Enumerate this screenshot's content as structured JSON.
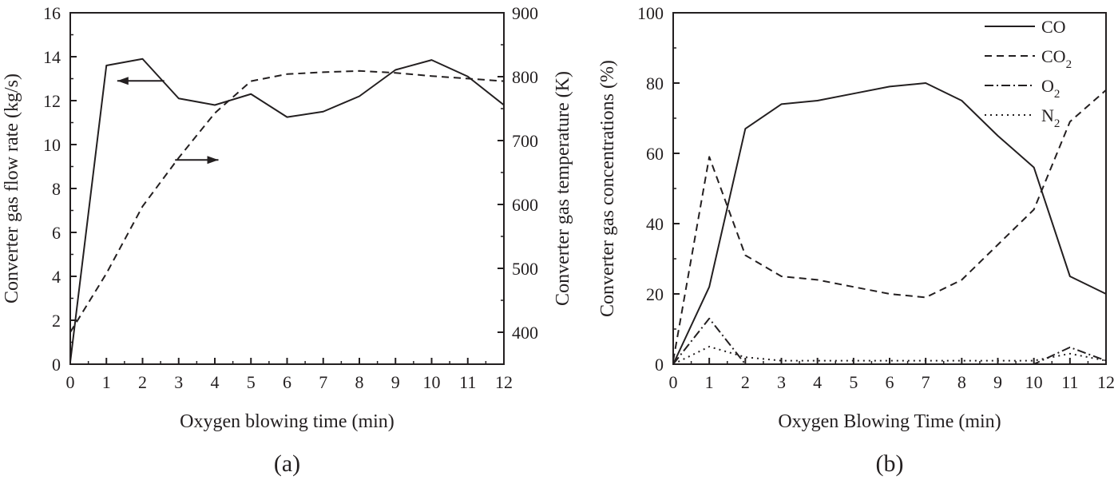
{
  "chart_data": [
    {
      "type": "line",
      "panel_label": "(a)",
      "xlabel": "Oxygen blowing time (min)",
      "ylabel_left": "Converter gas flow rate (kg/s)",
      "ylabel_right": "Converter gas temperature (K)",
      "xlim": [
        0,
        12
      ],
      "ylim_left": [
        0,
        16
      ],
      "ylim_right": [
        350,
        900
      ],
      "x_ticks": [
        "0",
        "1",
        "2",
        "3",
        "4",
        "5",
        "6",
        "7",
        "8",
        "9",
        "10",
        "11",
        "12"
      ],
      "y_left_ticks": [
        "0",
        "2",
        "4",
        "6",
        "8",
        "10",
        "12",
        "14",
        "16"
      ],
      "y_right_ticks": [
        "400",
        "500",
        "600",
        "700",
        "800",
        "900"
      ],
      "series": [
        {
          "name": "flow rate",
          "axis": "left",
          "style": "solid",
          "x": [
            0,
            1,
            2,
            3,
            4,
            5,
            6,
            7,
            8,
            9,
            10,
            11,
            12
          ],
          "values": [
            0.1,
            13.6,
            13.9,
            12.1,
            11.8,
            12.3,
            11.25,
            11.5,
            12.2,
            13.4,
            13.85,
            13.1,
            11.8
          ]
        },
        {
          "name": "temperature",
          "axis": "right",
          "style": "dashed",
          "x": [
            0,
            1,
            2,
            3,
            4,
            5,
            6,
            7,
            8,
            9,
            10,
            11,
            12
          ],
          "values": [
            400,
            492,
            597,
            673,
            743,
            793,
            804,
            807,
            809,
            806,
            801,
            797,
            793
          ]
        }
      ],
      "annotations": [
        {
          "text": "arrow pointing left",
          "target_axis": "left",
          "x_from": 2.6,
          "x_to": 1.3,
          "y": 12.9
        },
        {
          "text": "arrow pointing right",
          "target_axis": "right",
          "x_from": 2.9,
          "x_to": 4.1,
          "y": 9.3
        }
      ]
    },
    {
      "type": "line",
      "panel_label": "(b)",
      "xlabel": "Oxygen Blowing Time (min)",
      "ylabel": "Converter gas concentrations (%)",
      "xlim": [
        0,
        12
      ],
      "ylim": [
        0,
        100
      ],
      "x_ticks": [
        "0",
        "1",
        "2",
        "3",
        "4",
        "5",
        "6",
        "7",
        "8",
        "9",
        "10",
        "11",
        "12"
      ],
      "y_ticks": [
        "0",
        "20",
        "40",
        "60",
        "80",
        "100"
      ],
      "legend_position": "top-right",
      "series": [
        {
          "name": "CO",
          "sub": "",
          "style": "solid",
          "x": [
            0,
            1,
            2,
            3,
            4,
            5,
            6,
            7,
            8,
            9,
            10,
            11,
            12
          ],
          "values": [
            0,
            22,
            67,
            74,
            75,
            77,
            79,
            80,
            75,
            65,
            56,
            25,
            20
          ]
        },
        {
          "name": "CO",
          "sub": "2",
          "style": "dashed",
          "x": [
            0,
            1,
            2,
            3,
            4,
            5,
            6,
            7,
            8,
            9,
            10,
            11,
            12
          ],
          "values": [
            1,
            59,
            31,
            25,
            24,
            22,
            20,
            19,
            24,
            34,
            44,
            69,
            78
          ]
        },
        {
          "name": "O",
          "sub": "2",
          "style": "dashdot",
          "x": [
            0,
            1,
            2,
            10,
            11,
            12
          ],
          "values": [
            0,
            13,
            0,
            0,
            4.8,
            1
          ]
        },
        {
          "name": "N",
          "sub": "2",
          "style": "dotted",
          "x": [
            0,
            1,
            2,
            3,
            4,
            5,
            6,
            7,
            8,
            9,
            10,
            11,
            12
          ],
          "values": [
            0,
            5,
            2,
            1,
            1,
            1,
            1,
            1,
            1,
            1,
            1,
            3,
            1
          ]
        }
      ]
    }
  ]
}
